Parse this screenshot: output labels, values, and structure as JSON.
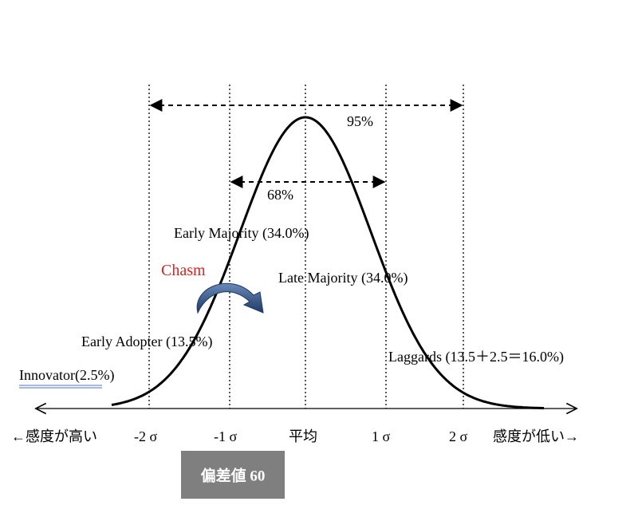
{
  "diagram": {
    "range_labels": {
      "outer": "95%",
      "inner": "68%"
    },
    "segments": {
      "innovator": "Innovator(2.5%)",
      "early_adopter": "Early Adopter (13.5%)",
      "early_majority": "Early Majority (34.0%)",
      "late_majority": "Late Majority (34.0%)",
      "laggards": "Laggards (13.5＋2.5＝16.0%)"
    },
    "chasm": "Chasm",
    "axis_labels": [
      "←感度が高い",
      "-2 σ",
      "-1 σ",
      "平均",
      "1 σ",
      "2 σ",
      "感度が低い→"
    ],
    "badge": "偏差値 60"
  }
}
